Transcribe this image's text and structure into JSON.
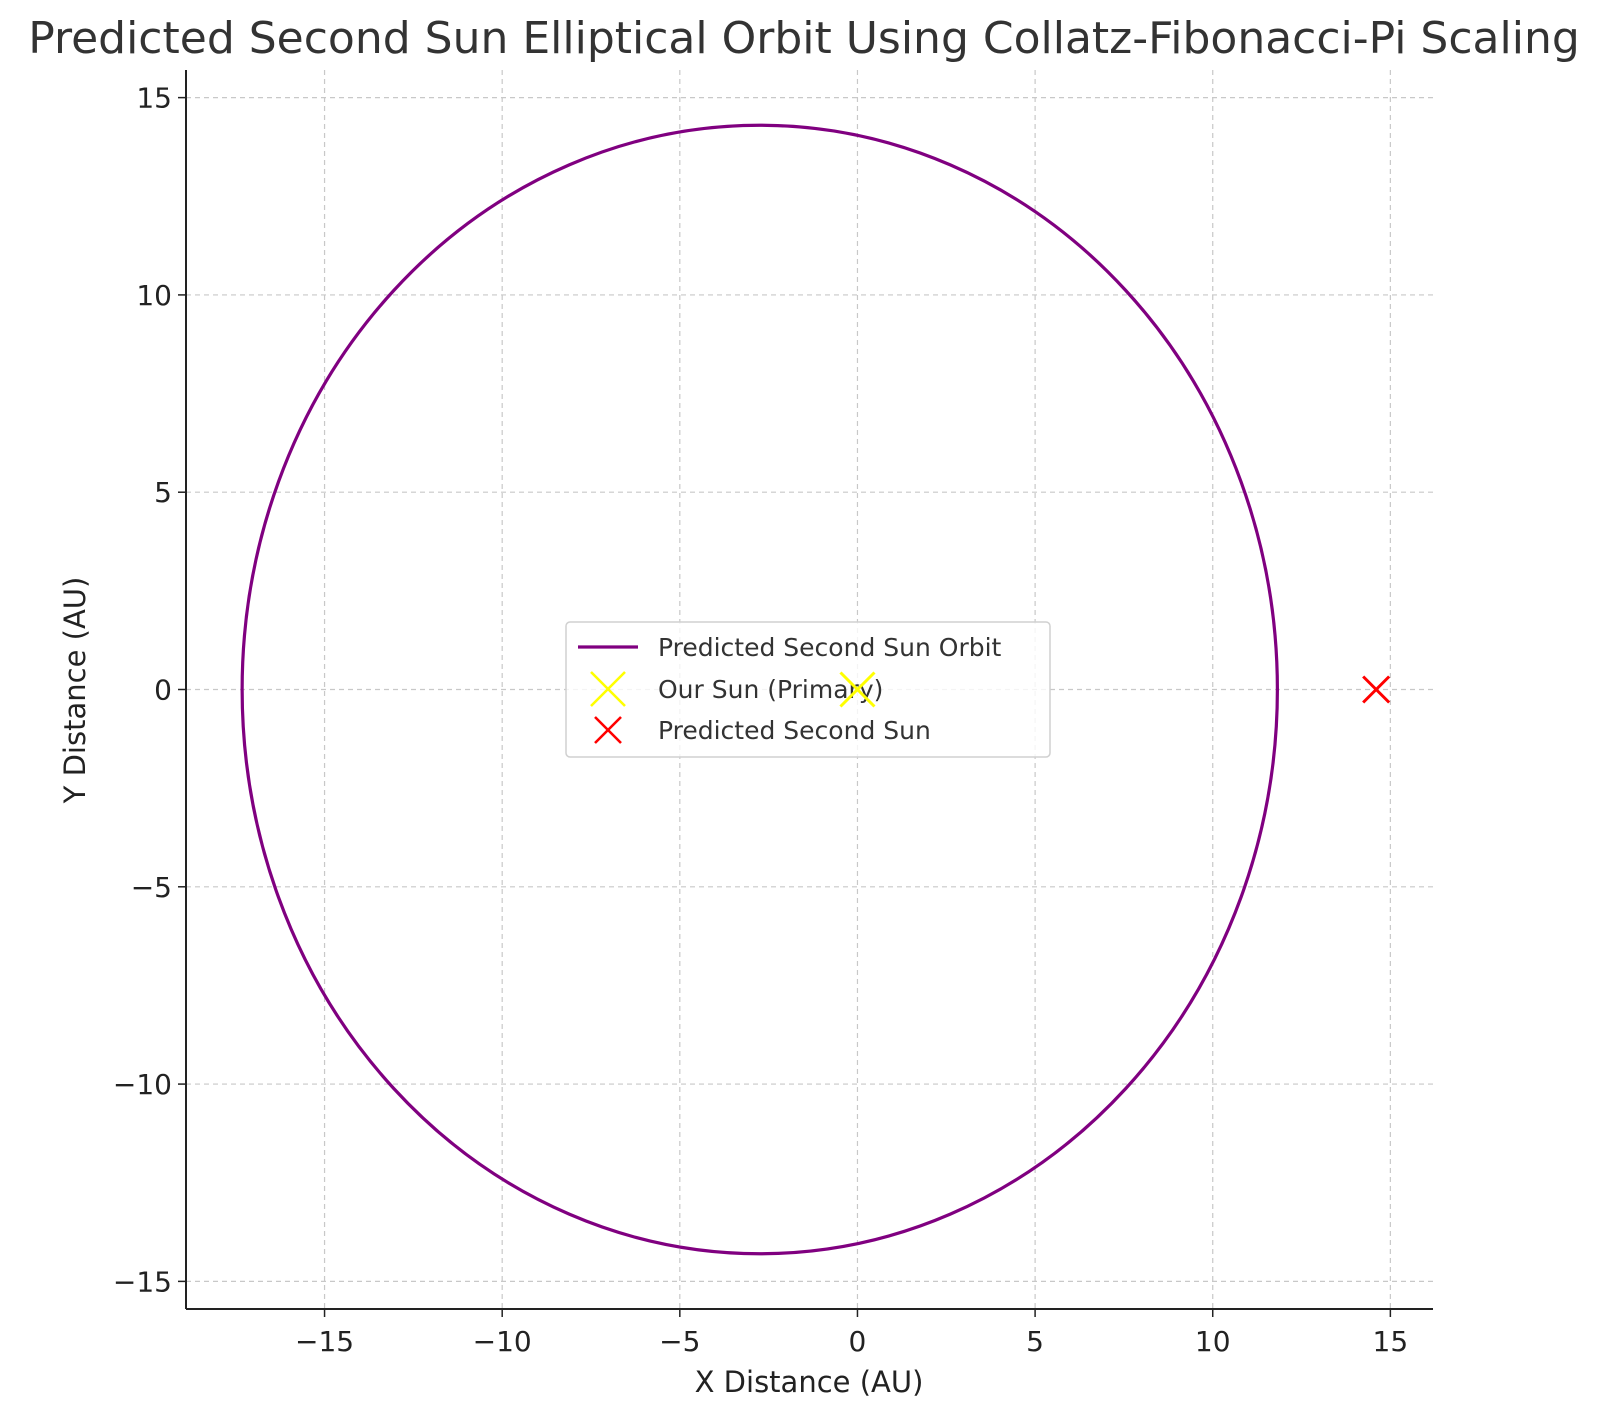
{
  "chart_data": {
    "type": "line",
    "title": "Predicted Second Sun Elliptical Orbit Using Collatz-Fibonacci-Pi Scaling",
    "xlabel": "X Distance (AU)",
    "ylabel": "Y Distance (AU)",
    "xlim": [
      -18.9,
      16.2
    ],
    "ylim": [
      -15.7,
      15.7
    ],
    "xticks": [
      -15,
      -10,
      -5,
      0,
      5,
      10,
      15
    ],
    "yticks": [
      -15,
      -10,
      -5,
      0,
      5,
      10,
      15
    ],
    "xtick_labels": [
      "−15",
      "−10",
      "−5",
      "0",
      "5",
      "10",
      "15"
    ],
    "ytick_labels": [
      "−15",
      "−10",
      "−5",
      "0",
      "5",
      "10",
      "15"
    ],
    "grid": true,
    "legend_position": "center",
    "series": [
      {
        "name": "Predicted Second Sun Orbit",
        "kind": "ellipse",
        "center": [
          -2.75,
          0
        ],
        "semi_major": 14.57,
        "semi_minor": 14.3,
        "color": "#800080"
      },
      {
        "name": "Our Sun (Primary)",
        "kind": "marker",
        "marker": "x",
        "x": [
          0
        ],
        "y": [
          0
        ],
        "color": "#ffff00"
      },
      {
        "name": "Predicted Second Sun",
        "kind": "marker",
        "marker": "x",
        "x": [
          14.6
        ],
        "y": [
          0
        ],
        "color": "#ff0000"
      }
    ]
  }
}
